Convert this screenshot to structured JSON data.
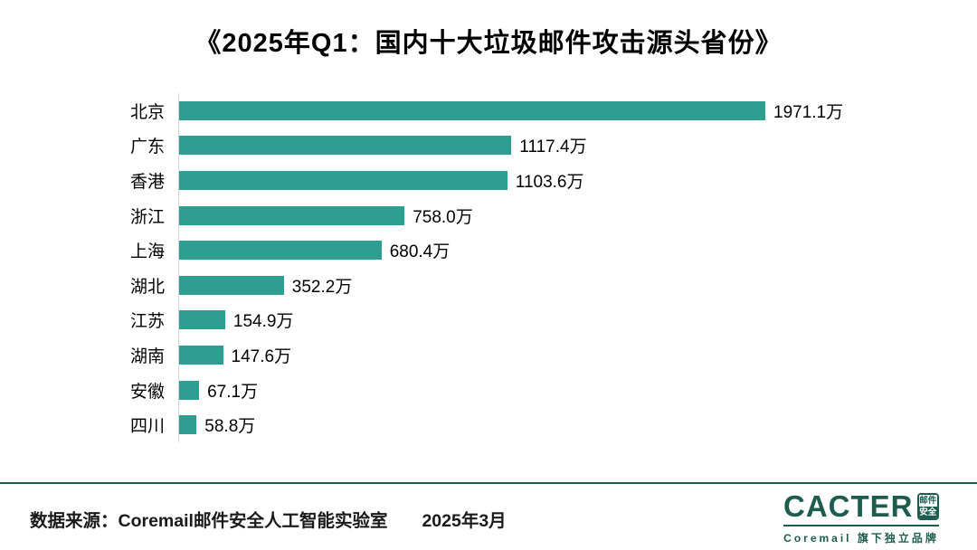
{
  "title": "《2025年Q1：国内十大垃圾邮件攻击源头省份》",
  "chart_data": {
    "type": "bar",
    "orientation": "horizontal",
    "title": "《2025年Q1：国内十大垃圾邮件攻击源头省份》",
    "categories": [
      "北京",
      "广东",
      "香港",
      "浙江",
      "上海",
      "湖北",
      "江苏",
      "湖南",
      "安徽",
      "四川"
    ],
    "values": [
      1971.1,
      1117.4,
      1103.6,
      758.0,
      680.4,
      352.2,
      154.9,
      147.6,
      67.1,
      58.8
    ],
    "value_labels": [
      "1971.1万",
      "1117.4万",
      "1103.6万",
      "758.0万",
      "680.4万",
      "352.2万",
      "154.9万",
      "147.6万",
      "67.1万",
      "58.8万"
    ],
    "unit": "万",
    "xlabel": "",
    "ylabel": "",
    "xlim": [
      0,
      2000
    ],
    "grid": false,
    "legend": null,
    "bar_color": "#2F9E92",
    "axis_line_color": "#d9d9d9"
  },
  "footer": {
    "source_text": "数据来源：Coremail邮件安全人工智能实验室",
    "date_text": "2025年3月",
    "divider_color": "#1E5B50"
  },
  "logo": {
    "wordmark": "CACTER",
    "badge_line1": "邮件",
    "badge_line2": "安全",
    "tagline": "Coremail 旗下独立品牌",
    "brand_color": "#1D5C4E"
  }
}
